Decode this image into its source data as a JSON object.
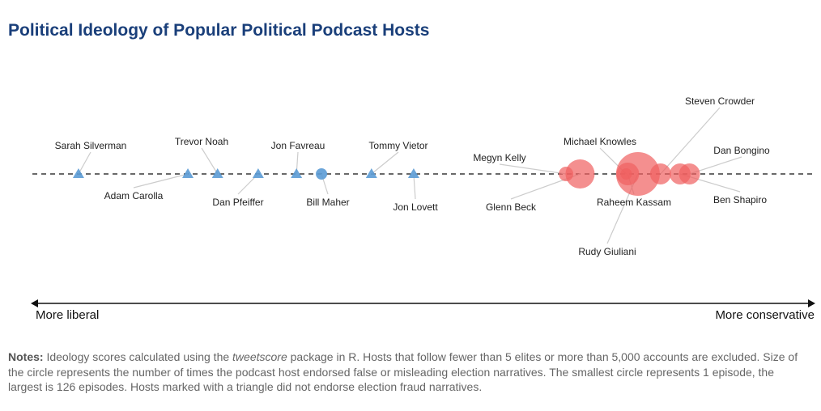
{
  "title": "Political Ideology of Popular Political Podcast Hosts",
  "axis": {
    "left_label": "More liberal",
    "right_label": "More conservative"
  },
  "notes": {
    "label": "Notes:",
    "before_italic": " Ideology scores calculated using the ",
    "italic": "tweetscore",
    "after_italic": " package in R. Hosts that follow fewer than 5 elites or more than 5,000 accounts are excluded. Size of the circle represents the number of times the podcast host endorsed false or misleading election narratives. The smallest circle represents 1 episode, the largest is 126 episodes. Hosts marked with a triangle did not endorse election fraud narratives."
  },
  "chart_data": {
    "type": "scatter",
    "title": "Political Ideology of Popular Political Podcast Hosts",
    "x_axis": "relative ideology position (liberal to conservative, no ticks printed)",
    "xlim": [
      0,
      100
    ],
    "grid": false,
    "colors": {
      "no_endorsement": "#5b9bd5",
      "endorsed": "#f06060"
    },
    "points": [
      {
        "name": "Sarah Silverman",
        "x": 5.9,
        "marker": "triangle",
        "episodes": 0
      },
      {
        "name": "Adam Carolla",
        "x": 19.9,
        "marker": "triangle",
        "episodes": 0
      },
      {
        "name": "Trevor Noah",
        "x": 23.7,
        "marker": "triangle",
        "episodes": 0
      },
      {
        "name": "Dan Pfeiffer",
        "x": 28.9,
        "marker": "triangle",
        "episodes": 0
      },
      {
        "name": "Jon Favreau",
        "x": 33.8,
        "marker": "triangle",
        "episodes": 0
      },
      {
        "name": "Bill Maher",
        "x": 37.0,
        "marker": "circle",
        "episodes": 1
      },
      {
        "name": "Tommy Vietor",
        "x": 43.4,
        "marker": "triangle",
        "episodes": 0
      },
      {
        "name": "Jon Lovett",
        "x": 48.8,
        "marker": "triangle",
        "episodes": 0
      },
      {
        "name": "Megyn Kelly",
        "x": 68.3,
        "marker": "circle",
        "episodes": 14
      },
      {
        "name": "Glenn Beck",
        "x": 70.1,
        "marker": "circle",
        "episodes": 56
      },
      {
        "name": "Michael Knowles",
        "x": 76.0,
        "marker": "circle",
        "episodes": 8
      },
      {
        "name": "Raheem Kassam",
        "x": 76.2,
        "marker": "circle",
        "episodes": 34
      },
      {
        "name": "Rudy Giuliani",
        "x": 77.5,
        "marker": "circle",
        "episodes": 126
      },
      {
        "name": "Steven Crowder",
        "x": 80.4,
        "marker": "circle",
        "episodes": 29
      },
      {
        "name": "Ben Shapiro",
        "x": 82.9,
        "marker": "circle",
        "episodes": 29
      },
      {
        "name": "Dan Bongino",
        "x": 84.1,
        "marker": "circle",
        "episodes": 29
      }
    ]
  }
}
